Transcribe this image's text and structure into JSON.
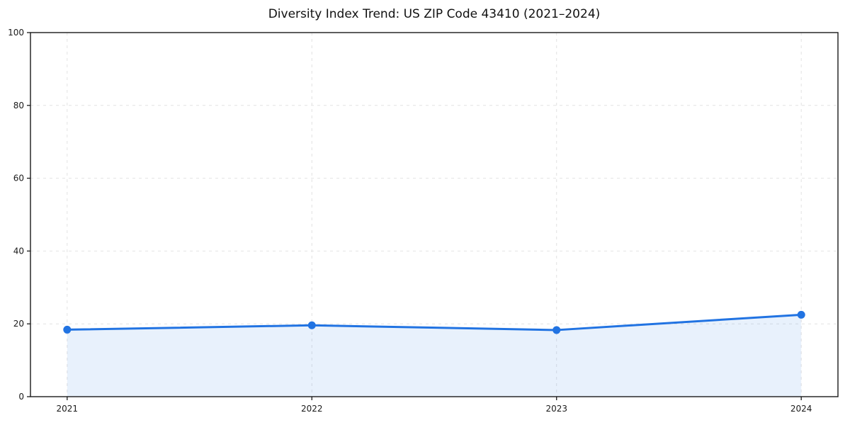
{
  "chart_data": {
    "type": "area",
    "title": "Diversity Index Trend: US ZIP Code 43410 (2021–2024)",
    "xlabel": "",
    "ylabel": "",
    "categories": [
      "2021",
      "2022",
      "2023",
      "2024"
    ],
    "series": [
      {
        "name": "Diversity Index",
        "values": [
          18.4,
          19.6,
          18.3,
          22.5
        ]
      }
    ],
    "ylim": [
      0,
      100
    ],
    "yticks": [
      0,
      20,
      40,
      60,
      80,
      100
    ],
    "grid": "dashed, both axes",
    "legend": "none",
    "colors": {
      "line": "#2173e2",
      "marker": "#2173e2",
      "area_fill": "#2173e2",
      "area_fill_opacity": 0.1,
      "grid": "#e2e2e2",
      "spine": "#1a1a1a",
      "tick_text": "#1a1a1a",
      "background": "#ffffff"
    }
  }
}
